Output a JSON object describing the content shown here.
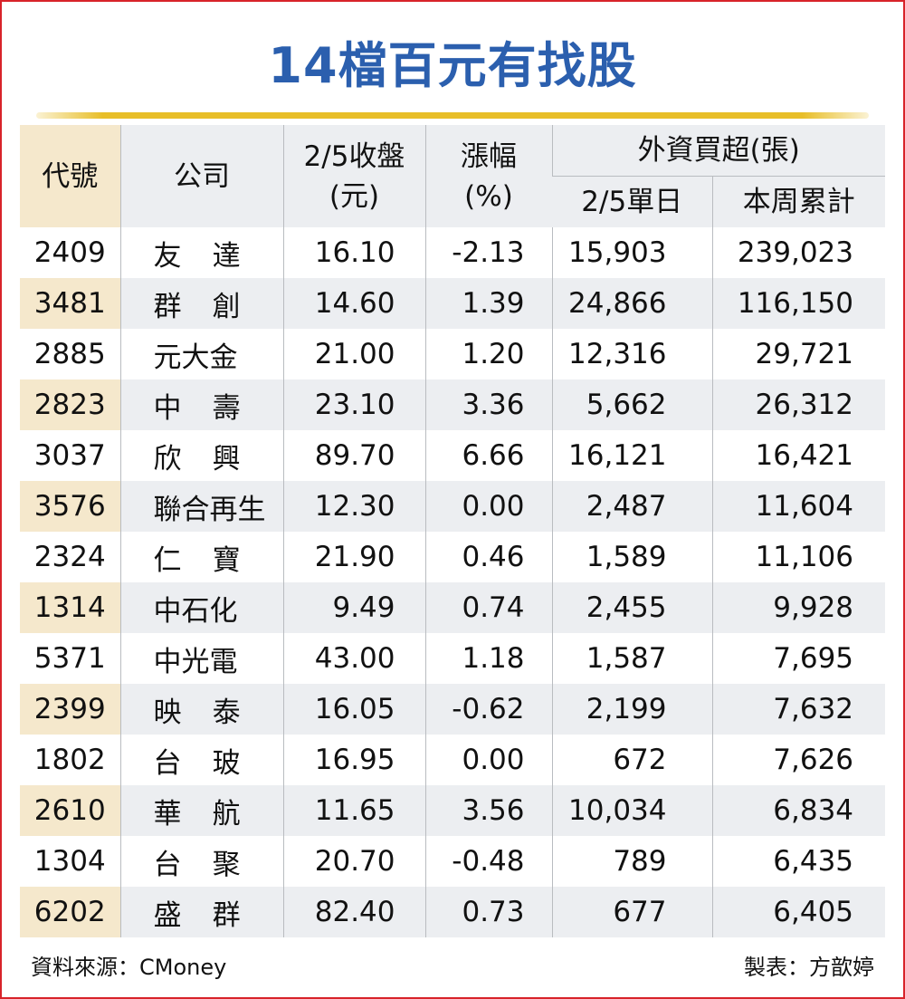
{
  "header": {
    "title": "14檔百元有找股",
    "columns": {
      "code": "代號",
      "company": "公司",
      "close": [
        "2/5收盤",
        "(元)"
      ],
      "change": [
        "漲幅",
        "(%)"
      ],
      "foreign": "外資買超(張)",
      "daily": "2/5單日",
      "weekly": "本周累計"
    }
  },
  "table": {
    "rows": [
      [
        "2409",
        "友達",
        "16.10",
        "-2.13",
        "15,903",
        "239,023"
      ],
      [
        "3481",
        "群創",
        "14.60",
        "1.39",
        "24,866",
        "116,150"
      ],
      [
        "2885",
        "元大金",
        "21.00",
        "1.20",
        "12,316",
        "29,721"
      ],
      [
        "2823",
        "中壽",
        "23.10",
        "3.36",
        "5,662",
        "26,312"
      ],
      [
        "3037",
        "欣興",
        "89.70",
        "6.66",
        "16,121",
        "16,421"
      ],
      [
        "3576",
        "聯合再生",
        "12.30",
        "0.00",
        "2,487",
        "11,604"
      ],
      [
        "2324",
        "仁寶",
        "21.90",
        "0.46",
        "1,589",
        "11,106"
      ],
      [
        "1314",
        "中石化",
        "9.49",
        "0.74",
        "2,455",
        "9,928"
      ],
      [
        "5371",
        "中光電",
        "43.00",
        "1.18",
        "1,587",
        "7,695"
      ],
      [
        "2399",
        "映泰",
        "16.05",
        "-0.62",
        "2,199",
        "7,632"
      ],
      [
        "1802",
        "台玻",
        "16.95",
        "0.00",
        "672",
        "7,626"
      ],
      [
        "2610",
        "華航",
        "11.65",
        "3.56",
        "10,034",
        "6,834"
      ],
      [
        "1304",
        "台聚",
        "20.70",
        "-0.48",
        "789",
        "6,435"
      ],
      [
        "6202",
        "盛群",
        "82.40",
        "0.73",
        "677",
        "6,405"
      ]
    ]
  },
  "footer": {
    "source": "資料來源：CMoney",
    "author": "製表：方歆婷"
  }
}
